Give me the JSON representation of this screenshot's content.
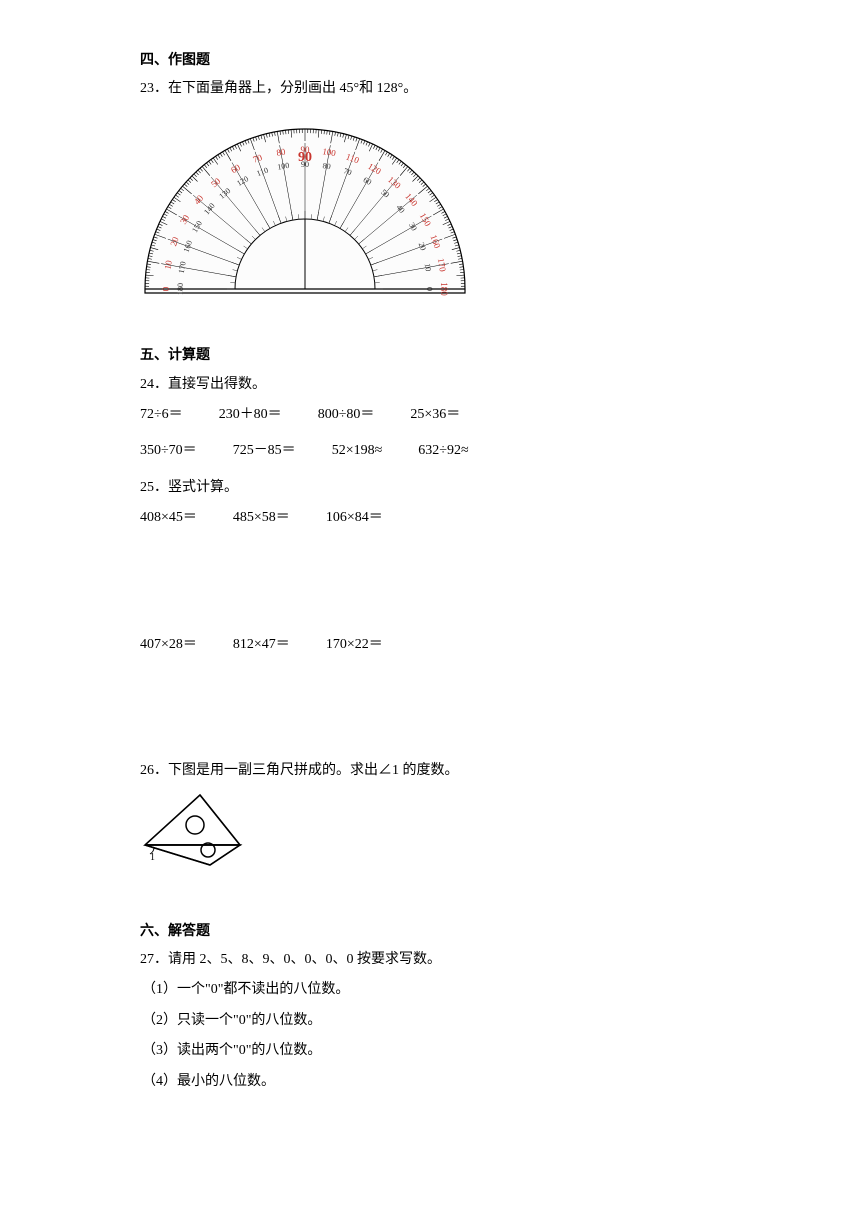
{
  "s4": {
    "title": "四、作图题",
    "q23": "23．在下面量角器上，分别画出 45°和 128°。"
  },
  "s5": {
    "title": "五、计算题",
    "q24": "24．直接写出得数。",
    "row1": {
      "a": "72÷6＝",
      "b": "230＋80＝",
      "c": "800÷80＝",
      "d": "25×36＝"
    },
    "row2": {
      "a": "350÷70＝",
      "b": "725－85＝",
      "c": "52×198≈",
      "d": "632÷92≈"
    },
    "q25": "25．竖式计算。",
    "row3": {
      "a": "408×45＝",
      "b": "485×58＝",
      "c": "106×84＝"
    },
    "row4": {
      "a": "407×28＝",
      "b": "812×47＝",
      "c": "170×22＝"
    },
    "q26": "26．下图是用一副三角尺拼成的。求出∠1 的度数。"
  },
  "s6": {
    "title": "六、解答题",
    "q27": "27．请用 2、5、8、9、0、0、0、0 按要求写数。",
    "sub1": "（1）一个\"0\"都不读出的八位数。",
    "sub2": "（2）只读一个\"0\"的八位数。",
    "sub3": "（3）读出两个\"0\"的八位数。",
    "sub4": "（4）最小的八位数。"
  },
  "protractor": {
    "outerColors": {
      "tick": "#000000",
      "minorTick": "#333333"
    },
    "numberColor": "#c8352e",
    "innerNumberColor": "#333333",
    "bg": "#ffffff",
    "radius": 160,
    "innerRadius": 70,
    "centerX": 165,
    "baseY": 180,
    "outerLabels": [
      "0",
      "10",
      "20",
      "30",
      "40",
      "50",
      "60",
      "70",
      "80",
      "90",
      "100",
      "110",
      "120",
      "130",
      "140",
      "150",
      "160",
      "170",
      "180"
    ],
    "innerLabels": [
      "180",
      "170",
      "160",
      "150",
      "140",
      "130",
      "120",
      "110",
      "100",
      "90",
      "80",
      "70",
      "60",
      "50",
      "40",
      "30",
      "20",
      "10",
      "0"
    ]
  },
  "triangle": {
    "stroke": "#000000",
    "fill": "#ffffff"
  }
}
